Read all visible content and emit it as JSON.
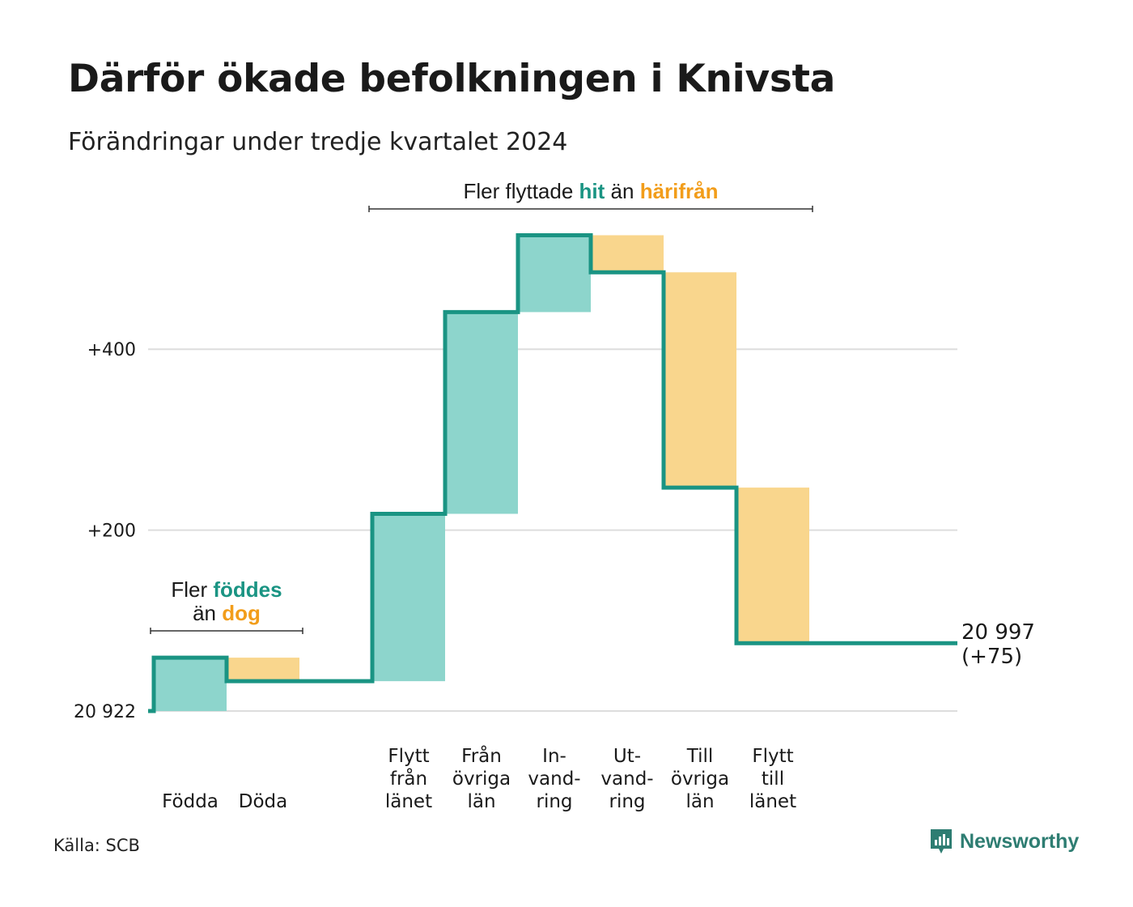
{
  "title": "Därför ökade befolkningen i Knivsta",
  "subtitle": "Förändringar under tredje kvartalet 2024",
  "source": "Källa: SCB",
  "brand": "Newsworthy",
  "colors": {
    "increase_fill": "#8dd5cc",
    "decrease_fill": "#f9d68d",
    "line": "#1a9483",
    "increase_text": "#1a9483",
    "decrease_text": "#f29d1a",
    "grid": "#dddddd",
    "brand": "#2e7d72"
  },
  "chart_data": {
    "type": "waterfall",
    "base_population": 20922,
    "ylim": [
      0,
      500
    ],
    "y_ticks": [
      {
        "value": 0,
        "label": "20 922"
      },
      {
        "value": 200,
        "label": "+200"
      },
      {
        "value": 400,
        "label": "+400"
      }
    ],
    "steps": [
      {
        "label": [
          "Födda"
        ],
        "change": 59,
        "kind": "increase"
      },
      {
        "label": [
          "Döda"
        ],
        "change": -26,
        "kind": "decrease"
      },
      {
        "label": [],
        "change": 0,
        "kind": "gap"
      },
      {
        "label": [
          "Flytt",
          "från",
          "länet"
        ],
        "change": 185,
        "kind": "increase"
      },
      {
        "label": [
          "Från",
          "övriga",
          "län"
        ],
        "change": 223,
        "kind": "increase"
      },
      {
        "label": [
          "In-",
          "vand-",
          "ring"
        ],
        "change": 85,
        "kind": "increase"
      },
      {
        "label": [
          "Ut-",
          "vand-",
          "ring"
        ],
        "change": -41,
        "kind": "decrease"
      },
      {
        "label": [
          "Till",
          "övriga",
          "län"
        ],
        "change": -238,
        "kind": "decrease"
      },
      {
        "label": [
          "Flytt",
          "till",
          "länet"
        ],
        "change": -172,
        "kind": "decrease"
      }
    ],
    "end_label": [
      "20 997",
      "(+75)"
    ],
    "annotations": [
      {
        "id": "natural",
        "from_step": 0,
        "to_step": 1,
        "parts": [
          {
            "line": 0,
            "text": "Fler ",
            "tone": "plain"
          },
          {
            "line": 0,
            "text": "föddes",
            "tone": "increase"
          },
          {
            "line": 1,
            "text": "än ",
            "tone": "plain"
          },
          {
            "line": 1,
            "text": "dog",
            "tone": "decrease"
          }
        ]
      },
      {
        "id": "migration",
        "from_step": 3,
        "to_step": 8,
        "parts": [
          {
            "line": 0,
            "text": "Fler flyttade ",
            "tone": "plain"
          },
          {
            "line": 0,
            "text": "hit",
            "tone": "increase"
          },
          {
            "line": 0,
            "text": "  än ",
            "tone": "plain"
          },
          {
            "line": 0,
            "text": "härifrån",
            "tone": "decrease"
          }
        ]
      }
    ]
  }
}
